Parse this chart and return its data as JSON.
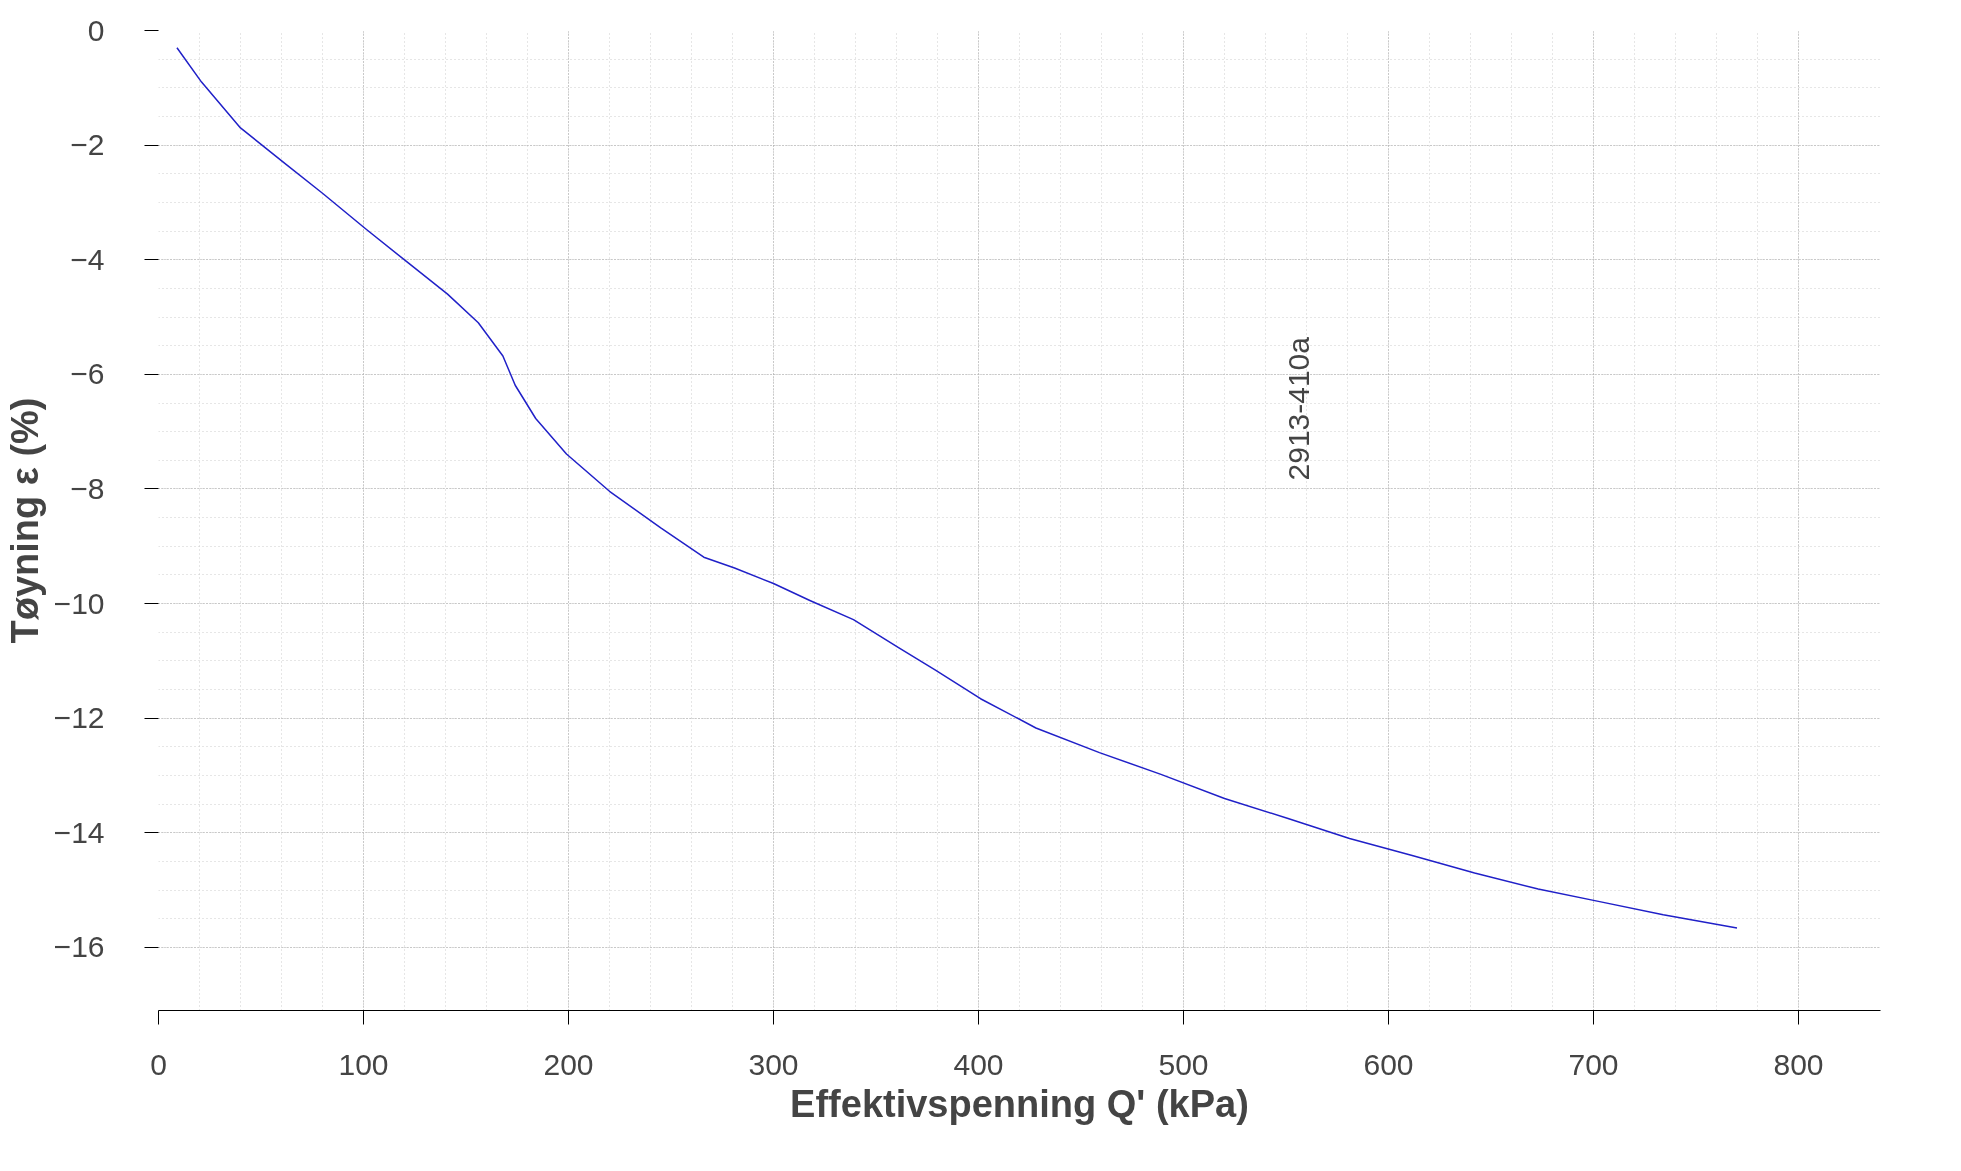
{
  "chart_data": {
    "type": "line",
    "xlabel": "Effektivspenning Q' (kPa)",
    "ylabel": "Tøyning ε (%)",
    "annotations": [
      "2913-410a"
    ],
    "x": [
      9,
      21,
      40,
      61,
      80,
      101,
      122,
      141,
      156,
      168,
      174,
      184,
      199,
      220,
      245,
      266,
      281,
      300,
      318,
      339,
      361,
      379,
      401,
      428,
      459,
      489,
      520,
      551,
      581,
      612,
      642,
      673,
      703,
      734,
      770
    ],
    "series": [
      {
        "color": "#2020c8",
        "values": [
          -0.3,
          -0.9,
          -1.7,
          -2.3,
          -2.84,
          -3.46,
          -4.06,
          -4.6,
          -5.1,
          -5.68,
          -6.19,
          -6.77,
          -7.39,
          -8.04,
          -8.68,
          -9.19,
          -9.38,
          -9.65,
          -9.95,
          -10.28,
          -10.77,
          -11.16,
          -11.66,
          -12.17,
          -12.6,
          -12.98,
          -13.4,
          -13.75,
          -14.1,
          -14.4,
          -14.7,
          -14.98,
          -15.2,
          -15.43,
          -15.66
        ]
      }
    ],
    "xlim": [
      0,
      840
    ],
    "ylim": [
      -17.1,
      0
    ],
    "xticks": [
      0,
      100,
      200,
      300,
      400,
      500,
      600,
      700,
      800
    ],
    "yticks": [
      -16,
      -14,
      -12,
      -10,
      -8,
      -6,
      -4,
      -2,
      0
    ],
    "grid": true,
    "marker": "none",
    "line_style": "solid"
  }
}
